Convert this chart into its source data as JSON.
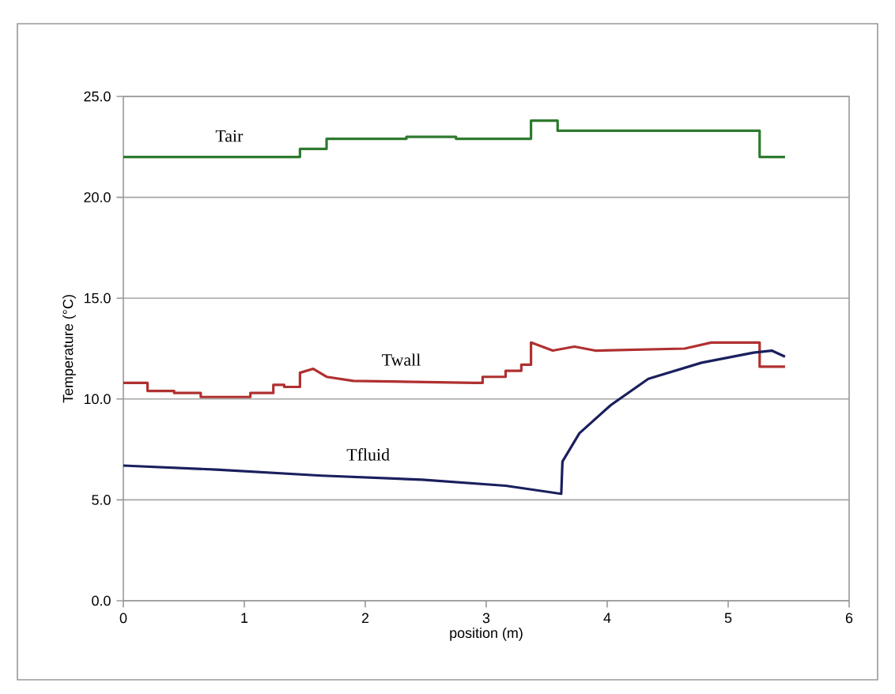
{
  "chart_data": {
    "type": "line",
    "xlabel": "position (m)",
    "ylabel": "Temperature (°C)",
    "xlim": [
      0,
      6
    ],
    "xticks": [
      0,
      1,
      2,
      3,
      4,
      5,
      6
    ],
    "ylim": [
      0,
      25
    ],
    "yticks": [
      {
        "value": 0,
        "label": "0.0"
      },
      {
        "value": 5,
        "label": "5.0"
      },
      {
        "value": 10,
        "label": "10.0"
      },
      {
        "value": 15,
        "label": "15.0"
      },
      {
        "value": 20,
        "label": "20.0"
      },
      {
        "value": 25,
        "label": "25.0"
      }
    ],
    "grid": "y",
    "series": [
      {
        "name": "Tair",
        "color": "#2f7a2f",
        "x": [
          0,
          1.46,
          1.46,
          1.68,
          1.68,
          2.34,
          2.34,
          2.75,
          2.75,
          3.37,
          3.37,
          3.59,
          3.59,
          5.26,
          5.26,
          5.47
        ],
        "values": [
          22.0,
          22.0,
          22.4,
          22.4,
          22.9,
          22.9,
          23.0,
          23.0,
          22.9,
          22.9,
          23.8,
          23.8,
          23.3,
          23.3,
          22.0,
          22.0
        ]
      },
      {
        "name": "Twall",
        "color": "#b03030",
        "x": [
          0,
          0.2,
          0.2,
          0.42,
          0.42,
          0.64,
          0.64,
          1.05,
          1.05,
          1.24,
          1.24,
          1.33,
          1.33,
          1.46,
          1.46,
          1.57,
          1.57,
          1.68,
          1.68,
          1.9,
          1.9,
          2.9,
          2.97,
          2.97,
          3.16,
          3.16,
          3.29,
          3.29,
          3.37,
          3.37,
          3.55,
          3.73,
          3.9,
          4.64,
          4.86,
          5.26,
          5.26,
          5.47
        ],
        "values": [
          10.8,
          10.8,
          10.4,
          10.4,
          10.3,
          10.3,
          10.1,
          10.1,
          10.3,
          10.3,
          10.7,
          10.7,
          10.6,
          10.6,
          11.3,
          11.5,
          11.5,
          11.1,
          11.1,
          10.9,
          10.9,
          10.8,
          10.8,
          11.1,
          11.1,
          11.4,
          11.4,
          11.7,
          11.7,
          12.8,
          12.4,
          12.6,
          12.4,
          12.5,
          12.8,
          12.8,
          11.6,
          11.6
        ]
      },
      {
        "name": "Tfluid",
        "color": "#1a1f5e",
        "x": [
          0,
          0.77,
          1.64,
          2.47,
          3.16,
          3.62,
          3.63,
          3.77,
          4.03,
          4.34,
          4.78,
          5.21,
          5.36,
          5.47
        ],
        "values": [
          6.7,
          6.5,
          6.2,
          6.0,
          5.7,
          5.3,
          6.9,
          8.3,
          9.7,
          11.0,
          11.8,
          12.3,
          12.4,
          12.1
        ]
      }
    ]
  }
}
